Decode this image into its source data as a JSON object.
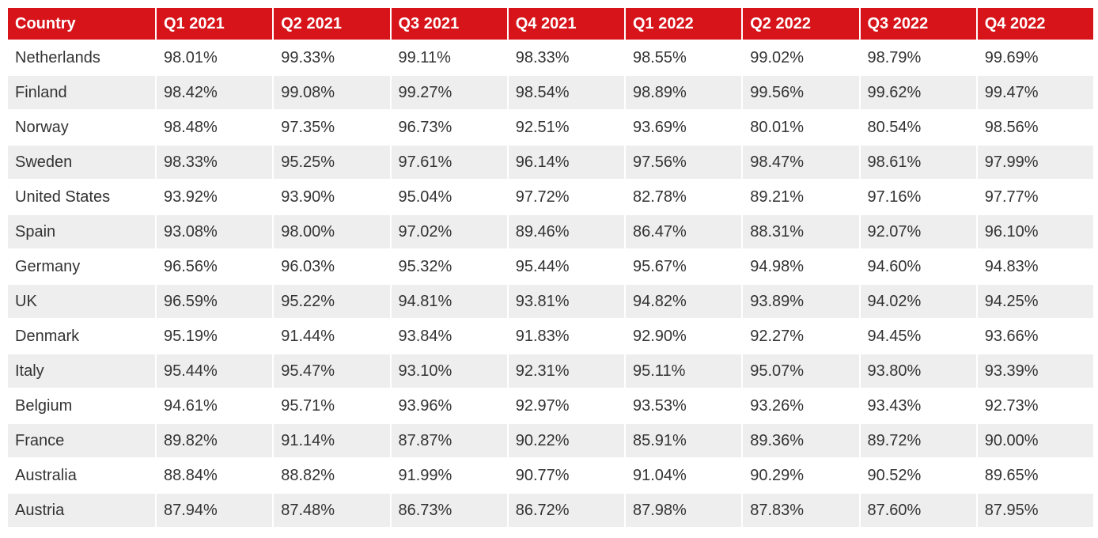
{
  "table": {
    "header": [
      "Country",
      "Q1 2021",
      "Q2 2021",
      "Q3 2021",
      "Q4 2021",
      "Q1 2022",
      "Q2 2022",
      "Q3 2022",
      "Q4 2022"
    ],
    "rows": [
      [
        "Netherlands",
        "98.01%",
        "99.33%",
        "99.11%",
        "98.33%",
        "98.55%",
        "99.02%",
        "98.79%",
        "99.69%"
      ],
      [
        "Finland",
        "98.42%",
        "99.08%",
        "99.27%",
        "98.54%",
        "98.89%",
        "99.56%",
        "99.62%",
        "99.47%"
      ],
      [
        "Norway",
        "98.48%",
        "97.35%",
        "96.73%",
        "92.51%",
        "93.69%",
        "80.01%",
        "80.54%",
        "98.56%"
      ],
      [
        "Sweden",
        "98.33%",
        "95.25%",
        "97.61%",
        "96.14%",
        "97.56%",
        "98.47%",
        "98.61%",
        "97.99%"
      ],
      [
        "United States",
        "93.92%",
        "93.90%",
        "95.04%",
        "97.72%",
        "82.78%",
        "89.21%",
        "97.16%",
        "97.77%"
      ],
      [
        "Spain",
        "93.08%",
        "98.00%",
        "97.02%",
        "89.46%",
        "86.47%",
        "88.31%",
        "92.07%",
        "96.10%"
      ],
      [
        "Germany",
        "96.56%",
        "96.03%",
        "95.32%",
        "95.44%",
        "95.67%",
        "94.98%",
        "94.60%",
        "94.83%"
      ],
      [
        "UK",
        "96.59%",
        "95.22%",
        "94.81%",
        "93.81%",
        "94.82%",
        "93.89%",
        "94.02%",
        "94.25%"
      ],
      [
        "Denmark",
        "95.19%",
        "91.44%",
        "93.84%",
        "91.83%",
        "92.90%",
        "92.27%",
        "94.45%",
        "93.66%"
      ],
      [
        "Italy",
        "95.44%",
        "95.47%",
        "93.10%",
        "92.31%",
        "95.11%",
        "95.07%",
        "93.80%",
        "93.39%"
      ],
      [
        "Belgium",
        "94.61%",
        "95.71%",
        "93.96%",
        "92.97%",
        "93.53%",
        "93.26%",
        "93.43%",
        "92.73%"
      ],
      [
        "France",
        "89.82%",
        "91.14%",
        "87.87%",
        "90.22%",
        "85.91%",
        "89.36%",
        "89.72%",
        "90.00%"
      ],
      [
        "Australia",
        "88.84%",
        "88.82%",
        "91.99%",
        "90.77%",
        "91.04%",
        "90.29%",
        "90.52%",
        "89.65%"
      ],
      [
        "Austria",
        "87.94%",
        "87.48%",
        "86.73%",
        "86.72%",
        "87.98%",
        "87.83%",
        "87.60%",
        "87.95%"
      ]
    ]
  }
}
